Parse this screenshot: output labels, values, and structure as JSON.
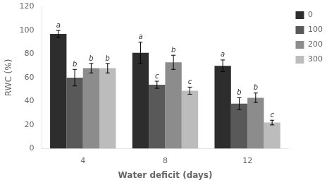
{
  "chart_data": {
    "type": "bar",
    "xlabel": "Water deficit (days)",
    "ylabel": "RWC (%)",
    "categories": [
      "4",
      "8",
      "12"
    ],
    "series": [
      {
        "name": "0",
        "color": "#2d2d2d",
        "values": [
          97,
          81,
          70
        ],
        "errors": [
          3,
          9,
          5
        ],
        "annotations": [
          "a",
          "a",
          "a"
        ]
      },
      {
        "name": "100",
        "color": "#595959",
        "values": [
          60,
          54,
          38
        ],
        "errors": [
          7,
          3,
          5
        ],
        "annotations": [
          "b",
          "c",
          "b"
        ]
      },
      {
        "name": "200",
        "color": "#8c8c8c",
        "values": [
          68,
          73,
          43
        ],
        "errors": [
          4,
          6,
          4
        ],
        "annotations": [
          "b",
          "b",
          "b"
        ]
      },
      {
        "name": "300",
        "color": "#bcbcbc",
        "values": [
          68,
          49,
          22
        ],
        "errors": [
          4,
          3,
          2
        ],
        "annotations": [
          "b",
          "c",
          "c"
        ]
      }
    ],
    "ylim": [
      0,
      120
    ],
    "yticks": [
      0,
      20,
      40,
      60,
      80,
      100,
      120
    ],
    "grid": false,
    "legend": "right"
  }
}
